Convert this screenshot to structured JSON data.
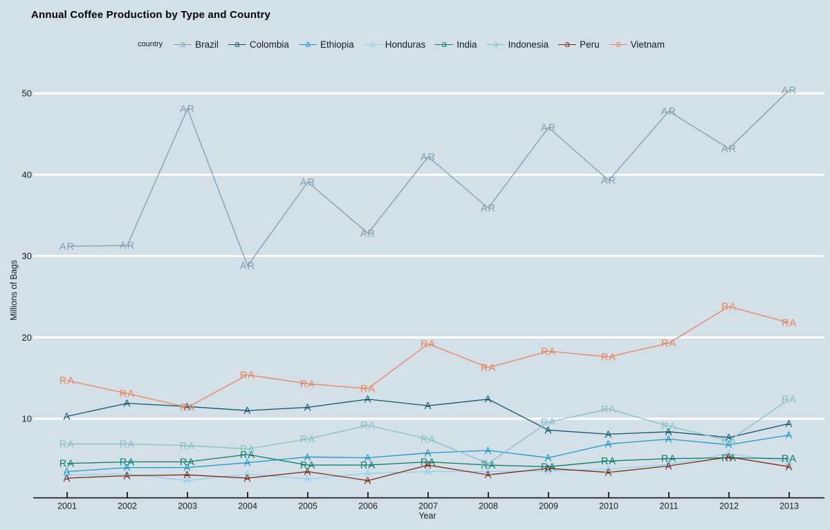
{
  "title": "Annual Coffee Production by Type and Country",
  "legend": {
    "label": "country",
    "marker_glyph": "a",
    "entries": [
      {
        "name": "Brazil",
        "color": "#7f9db0"
      },
      {
        "name": "Colombia",
        "color": "#155571"
      },
      {
        "name": "Ethiopia",
        "color": "#1e96c8"
      },
      {
        "name": "Honduras",
        "color": "#8fd0f0"
      },
      {
        "name": "India",
        "color": "#0a7c6d"
      },
      {
        "name": "Indonesia",
        "color": "#84c1c3"
      },
      {
        "name": "Peru",
        "color": "#7c2a17"
      },
      {
        "name": "Vietnam",
        "color": "#e8815f"
      }
    ]
  },
  "colors": {
    "background": "#d3e0e7",
    "gridline": "#ffffff",
    "axis_line": "#000000",
    "tick_text": "#1c1c1c"
  },
  "chart_data": {
    "type": "line",
    "title": "Annual Coffee Production by Type and Country",
    "xlabel": "Year",
    "ylabel": "Millions of Bags",
    "x": [
      2001,
      2002,
      2003,
      2004,
      2005,
      2006,
      2007,
      2008,
      2009,
      2010,
      2011,
      2012,
      2013
    ],
    "y_ticks": [
      10,
      20,
      30,
      40,
      50
    ],
    "ylim": [
      0.3,
      52.6
    ],
    "grid": "horizontal-white",
    "legend_position": "top-center",
    "point_label_meaning": "coffee type letters at each data point: A = Arabica, R = Robusta",
    "series": [
      {
        "name": "Brazil",
        "point_label": "AR",
        "color": "#7f9db0",
        "values": [
          31.2,
          31.3,
          48.1,
          28.8,
          39.1,
          32.8,
          42.2,
          35.9,
          45.8,
          39.3,
          47.8,
          43.2,
          50.4
        ]
      },
      {
        "name": "Colombia",
        "point_label": "A",
        "color": "#155571",
        "values": [
          10.3,
          11.9,
          11.5,
          11.0,
          11.4,
          12.4,
          11.6,
          12.4,
          8.6,
          8.1,
          8.4,
          7.7,
          9.4
        ]
      },
      {
        "name": "Ethiopia",
        "point_label": "A",
        "color": "#1e96c8",
        "values": [
          3.5,
          4.0,
          4.0,
          4.6,
          5.3,
          5.2,
          5.8,
          6.1,
          5.2,
          6.9,
          7.5,
          6.8,
          8.0
        ]
      },
      {
        "name": "Honduras",
        "point_label": "A",
        "color": "#8fd0f0",
        "values": [
          3.1,
          3.2,
          2.4,
          3.2,
          2.6,
          3.3,
          3.5,
          3.5,
          3.6,
          3.8,
          4.4,
          5.7,
          4.7
        ]
      },
      {
        "name": "India",
        "point_label": "RA",
        "color": "#0a7c6d",
        "values": [
          4.5,
          4.7,
          4.7,
          5.6,
          4.3,
          4.3,
          4.7,
          4.3,
          4.1,
          4.8,
          5.1,
          5.2,
          5.1
        ]
      },
      {
        "name": "Indonesia",
        "point_label": "RA",
        "color": "#84c1c3",
        "values": [
          6.9,
          6.9,
          6.7,
          6.3,
          7.5,
          9.2,
          7.5,
          4.5,
          9.6,
          11.2,
          9.1,
          7.3,
          12.4
        ]
      },
      {
        "name": "Peru",
        "point_label": "A",
        "color": "#7c2a17",
        "values": [
          2.7,
          3.0,
          3.1,
          2.7,
          3.5,
          2.4,
          4.3,
          3.1,
          3.9,
          3.4,
          4.2,
          5.3,
          4.1
        ]
      },
      {
        "name": "Vietnam",
        "point_label": "RA",
        "color": "#e8815f",
        "values": [
          14.7,
          13.1,
          11.4,
          15.4,
          14.3,
          13.7,
          19.2,
          16.3,
          18.3,
          17.6,
          19.3,
          23.8,
          21.8
        ]
      }
    ]
  }
}
